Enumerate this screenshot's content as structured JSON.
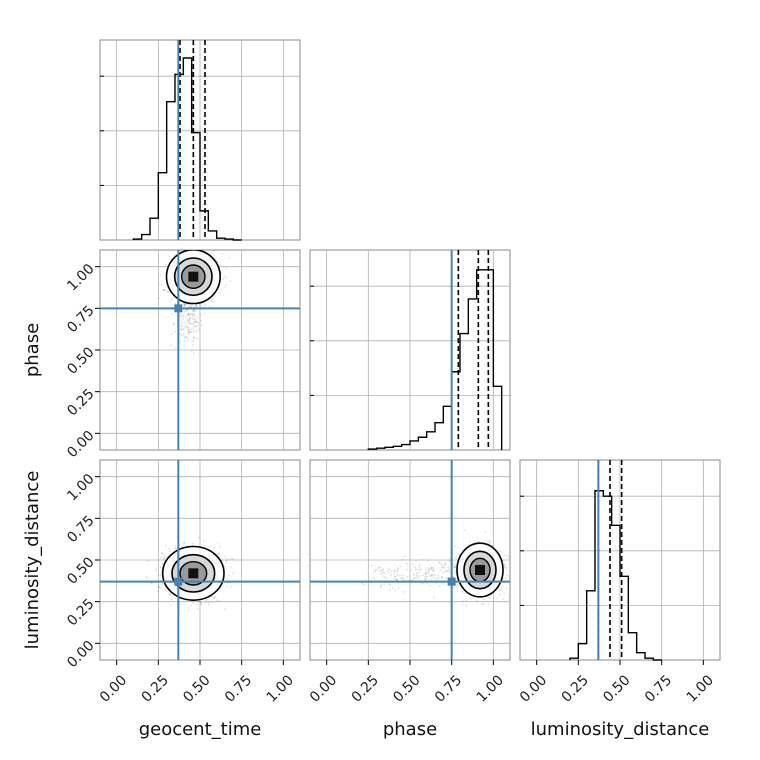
{
  "chart_data": {
    "type": "corner",
    "parameters": [
      "geocent_time",
      "phase",
      "luminosity_distance"
    ],
    "axis_range": [
      -0.1,
      1.1
    ],
    "ticks": [
      0.0,
      0.25,
      0.5,
      0.75,
      1.0
    ],
    "tick_labels": [
      "0.00",
      "0.25",
      "0.50",
      "0.75",
      "1.00"
    ],
    "grid": true,
    "truth": {
      "geocent_time": 0.37,
      "phase": 0.75,
      "luminosity_distance": 0.37
    },
    "colors": {
      "truth": "#4682b4",
      "histogram": "#000000",
      "quantile": "#000000",
      "samples": "#555555",
      "grid": "#b0b0b0",
      "frame": "#888888"
    },
    "histograms": [
      {
        "parameter": "geocent_time",
        "bin_edges": [
          0.1,
          0.15,
          0.2,
          0.25,
          0.3,
          0.35,
          0.4,
          0.45,
          0.5,
          0.55,
          0.6,
          0.65,
          0.7,
          0.75
        ],
        "counts": [
          0.005,
          0.03,
          0.12,
          0.37,
          0.76,
          0.91,
          1.0,
          0.59,
          0.16,
          0.05,
          0.01,
          0.005,
          0.0
        ],
        "quantiles": [
          0.38,
          0.46,
          0.53
        ]
      },
      {
        "parameter": "phase",
        "bin_edges": [
          0.25,
          0.3,
          0.35,
          0.4,
          0.45,
          0.5,
          0.55,
          0.6,
          0.65,
          0.7,
          0.75,
          0.8,
          0.85,
          0.9,
          0.95,
          1.0,
          1.05
        ],
        "counts": [
          0.005,
          0.01,
          0.015,
          0.02,
          0.03,
          0.05,
          0.07,
          0.1,
          0.15,
          0.24,
          0.43,
          0.64,
          0.83,
          0.99,
          0.99,
          0.35
        ],
        "quantiles": [
          0.79,
          0.91,
          0.97
        ]
      },
      {
        "parameter": "luminosity_distance",
        "bin_edges": [
          0.2,
          0.25,
          0.3,
          0.35,
          0.4,
          0.45,
          0.5,
          0.55,
          0.6,
          0.65,
          0.7,
          0.75
        ],
        "counts": [
          0.01,
          0.09,
          0.38,
          0.93,
          0.9,
          0.74,
          0.46,
          0.15,
          0.04,
          0.01,
          0.0
        ],
        "quantiles": [
          0.37,
          0.44,
          0.51
        ]
      }
    ],
    "scatter_panels": [
      {
        "x": "geocent_time",
        "y": "phase",
        "peak": [
          0.46,
          0.94
        ],
        "spread": [
          0.07,
          0.07
        ],
        "tail_toward": [
          0.42,
          0.55
        ]
      },
      {
        "x": "geocent_time",
        "y": "luminosity_distance",
        "peak": [
          0.46,
          0.42
        ],
        "spread": [
          0.08,
          0.07
        ]
      },
      {
        "x": "phase",
        "y": "luminosity_distance",
        "peak": [
          0.92,
          0.44
        ],
        "spread": [
          0.06,
          0.07
        ],
        "tail_toward": [
          0.3,
          0.4
        ]
      }
    ]
  }
}
